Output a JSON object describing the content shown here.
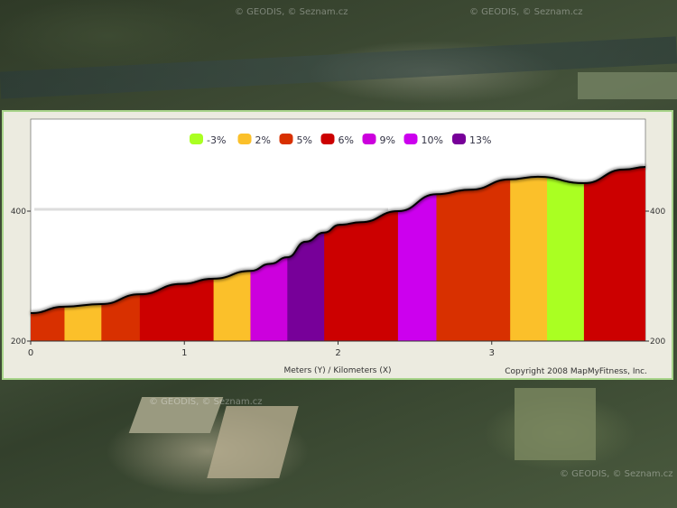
{
  "map": {
    "watermarks": [
      "© GEODIS, © Seznam.cz",
      "© GEODIS, © Seznam.cz",
      "© GEODIS, © Seznam.cz",
      "© GEODIS, © Seznam.cz"
    ]
  },
  "chart_data": {
    "type": "area",
    "title": "",
    "xlabel": "Meters (Y) / Kilometers (X)",
    "ylabel": "",
    "xlim": [
      0,
      4.0
    ],
    "ylim": [
      200,
      500
    ],
    "x_ticks": [
      "0",
      "1",
      "2",
      "3"
    ],
    "y_ticks": [
      "200",
      "400"
    ],
    "y_ticks_right": [
      "200",
      "400"
    ],
    "copyright": "Copyright 2008 MapMyFitness, Inc.",
    "legend_position": "top-center",
    "legend": [
      {
        "label": "-3%",
        "color": "#aaff22"
      },
      {
        "label": "2%",
        "color": "#fbc02a"
      },
      {
        "label": "5%",
        "color": "#d83000"
      },
      {
        "label": "6%",
        "color": "#cc0000"
      },
      {
        "label": "9%",
        "color": "#cc00dd"
      },
      {
        "label": "10%",
        "color": "#cc00ee"
      },
      {
        "label": "13%",
        "color": "#770099"
      }
    ],
    "profile": {
      "x": [
        0,
        0.22,
        0.46,
        0.71,
        0.98,
        1.19,
        1.43,
        1.56,
        1.67,
        1.79,
        1.91,
        2.01,
        2.15,
        2.39,
        2.64,
        2.86,
        3.12,
        3.3,
        3.6,
        3.86,
        4.0
      ],
      "y": [
        243,
        253,
        257,
        272,
        288,
        296,
        308,
        319,
        329,
        353,
        367,
        379,
        383,
        400,
        426,
        433,
        449,
        453,
        443,
        464,
        468
      ]
    },
    "segments": [
      {
        "from": 0,
        "to": 0.22,
        "grade": "5%"
      },
      {
        "from": 0.22,
        "to": 0.46,
        "grade": "2%"
      },
      {
        "from": 0.46,
        "to": 0.71,
        "grade": "5%"
      },
      {
        "from": 0.71,
        "to": 1.19,
        "grade": "6%"
      },
      {
        "from": 1.19,
        "to": 1.43,
        "grade": "2%"
      },
      {
        "from": 1.43,
        "to": 1.67,
        "grade": "9%"
      },
      {
        "from": 1.67,
        "to": 1.91,
        "grade": "13%"
      },
      {
        "from": 1.91,
        "to": 2.39,
        "grade": "6%"
      },
      {
        "from": 2.39,
        "to": 2.64,
        "grade": "10%"
      },
      {
        "from": 2.64,
        "to": 3.12,
        "grade": "5%"
      },
      {
        "from": 3.12,
        "to": 3.36,
        "grade": "2%"
      },
      {
        "from": 3.36,
        "to": 3.6,
        "grade": "-3%"
      },
      {
        "from": 3.6,
        "to": 4.0,
        "grade": "6%"
      }
    ]
  }
}
